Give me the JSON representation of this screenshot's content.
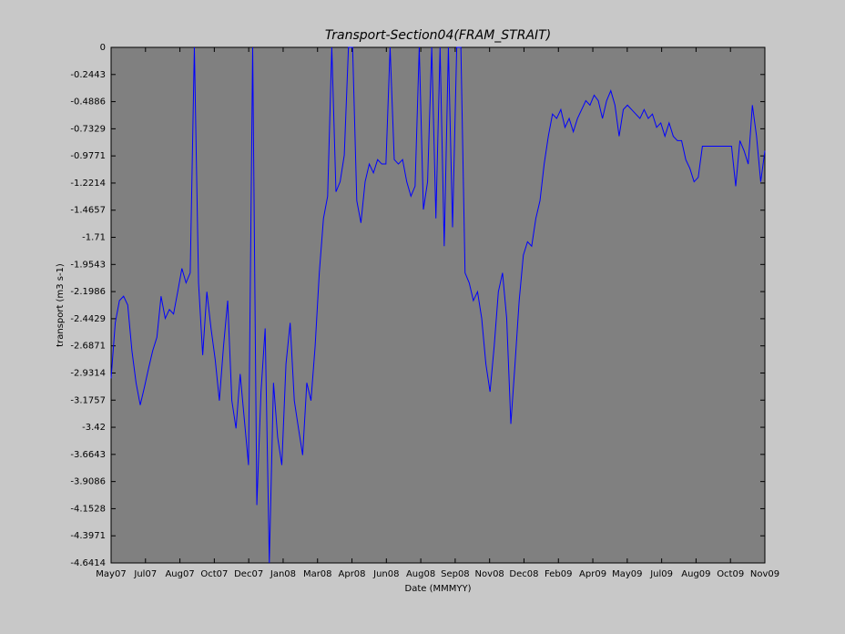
{
  "chart_data": {
    "type": "line",
    "title": "Transport-Section04(FRAM_STRAIT)",
    "x_label": "Date (MMMYY)",
    "y_label": "transport (m3 s-1)",
    "x_labels": [
      "May07",
      "Jul07",
      "Aug07",
      "Oct07",
      "Dec07",
      "Jan08",
      "Mar08",
      "Apr08",
      "Jun08",
      "Aug08",
      "Sep08",
      "Nov08",
      "Dec08",
      "Feb09",
      "Apr09",
      "May09",
      "Jul09",
      "Aug09",
      "Oct09",
      "Nov09"
    ],
    "ylim": [
      -4.6414,
      0
    ],
    "yticks": [
      0,
      -0.2443,
      -0.4886,
      -0.7329,
      -0.9771,
      -1.2214,
      -1.4657,
      -1.71,
      -1.9543,
      -2.1986,
      -2.4429,
      -2.6871,
      -2.9314,
      -3.1757,
      -3.42,
      -3.6643,
      -3.9086,
      -4.1528,
      -4.3971,
      -4.6414
    ],
    "series": [
      {
        "name": "transport",
        "color": "#0000ff",
        "values": [
          -2.98,
          -2.48,
          -2.28,
          -2.24,
          -2.32,
          -2.73,
          -3.02,
          -3.22,
          -3.06,
          -2.89,
          -2.73,
          -2.61,
          -2.24,
          -2.44,
          -2.36,
          -2.4,
          -2.2,
          -1.99,
          -2.12,
          -2.03,
          0,
          -2.12,
          -2.77,
          -2.2,
          -2.53,
          -2.81,
          -3.18,
          -2.69,
          -2.28,
          -3.18,
          -3.43,
          -2.94,
          -3.35,
          -3.76,
          0,
          -4.12,
          -3.1,
          -2.53,
          -4.64,
          -3.02,
          -3.51,
          -3.76,
          -2.85,
          -2.48,
          -3.18,
          -3.43,
          -3.67,
          -3.02,
          -3.18,
          -2.69,
          -2.03,
          -1.54,
          -1.34,
          0,
          -1.3,
          -1.21,
          -0.97,
          0,
          0,
          -1.38,
          -1.58,
          -1.21,
          -1.05,
          -1.13,
          -1.01,
          -1.05,
          -1.05,
          0,
          -1.01,
          -1.05,
          -1.01,
          -1.21,
          -1.34,
          -1.25,
          0,
          -1.46,
          -1.21,
          0,
          -1.54,
          0,
          -1.79,
          0,
          -1.62,
          0,
          0,
          -2.03,
          -2.12,
          -2.28,
          -2.2,
          -2.44,
          -2.85,
          -3.1,
          -2.69,
          -2.2,
          -2.03,
          -2.44,
          -3.39,
          -2.85,
          -2.28,
          -1.87,
          -1.75,
          -1.79,
          -1.54,
          -1.38,
          -1.05,
          -0.8,
          -0.6,
          -0.64,
          -0.56,
          -0.72,
          -0.64,
          -0.76,
          -0.64,
          -0.56,
          -0.48,
          -0.52,
          -0.43,
          -0.48,
          -0.64,
          -0.48,
          -0.39,
          -0.52,
          -0.8,
          -0.56,
          -0.52,
          -0.56,
          -0.6,
          -0.64,
          -0.56,
          -0.64,
          -0.6,
          -0.72,
          -0.68,
          -0.8,
          -0.68,
          -0.8,
          -0.84,
          -0.84,
          -1.01,
          -1.09,
          -1.21,
          -1.17,
          -0.89,
          -0.89,
          -0.89,
          -0.89,
          -0.89,
          -0.89,
          -0.89,
          -0.89,
          -1.25,
          -0.84,
          -0.93,
          -1.05,
          -0.52,
          -0.8,
          -1.21,
          -0.93
        ]
      }
    ]
  }
}
